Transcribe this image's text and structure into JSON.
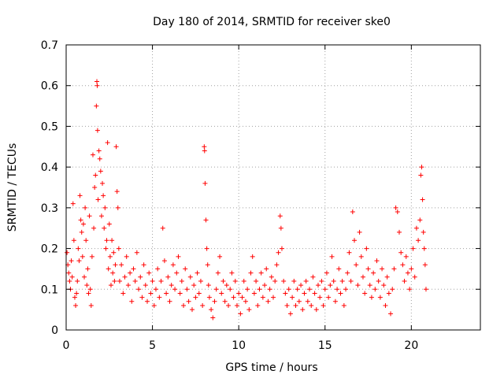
{
  "chart_data": {
    "type": "scatter",
    "title": "Day 180 of 2014, SRMTID for receiver ske0",
    "xlabel": "GPS time / hours",
    "ylabel": "SRMTID / TECUs",
    "xlim": [
      0,
      24
    ],
    "ylim": [
      0,
      0.7
    ],
    "xticks": [
      0,
      5,
      10,
      15,
      20
    ],
    "yticks": [
      0,
      0.1,
      0.2,
      0.3,
      0.4,
      0.5,
      0.6,
      0.7
    ],
    "xtick_labels": [
      "0",
      "5",
      "10",
      "15",
      "20"
    ],
    "ytick_labels": [
      "0",
      "0.1",
      "0.2",
      "0.3",
      "0.4",
      "0.5",
      "0.6",
      "0.7"
    ],
    "grid": true,
    "marker": "+",
    "color": "#ff0000",
    "series": [
      {
        "name": "ske0",
        "points": [
          [
            0.05,
            0.19
          ],
          [
            0.1,
            0.16
          ],
          [
            0.15,
            0.14
          ],
          [
            0.2,
            0.12
          ],
          [
            0.25,
            0.1
          ],
          [
            0.3,
            0.17
          ],
          [
            0.35,
            0.13
          ],
          [
            0.4,
            0.31
          ],
          [
            0.45,
            0.22
          ],
          [
            0.5,
            0.08
          ],
          [
            0.55,
            0.06
          ],
          [
            0.6,
            0.09
          ],
          [
            0.65,
            0.12
          ],
          [
            0.7,
            0.2
          ],
          [
            0.75,
            0.17
          ],
          [
            0.8,
            0.33
          ],
          [
            0.85,
            0.27
          ],
          [
            0.9,
            0.24
          ],
          [
            0.95,
            0.18
          ],
          [
            1.0,
            0.26
          ],
          [
            1.05,
            0.13
          ],
          [
            1.1,
            0.3
          ],
          [
            1.15,
            0.22
          ],
          [
            1.2,
            0.11
          ],
          [
            1.25,
            0.15
          ],
          [
            1.3,
            0.09
          ],
          [
            1.35,
            0.28
          ],
          [
            1.4,
            0.1
          ],
          [
            1.45,
            0.06
          ],
          [
            1.5,
            0.18
          ],
          [
            1.55,
            0.43
          ],
          [
            1.6,
            0.25
          ],
          [
            1.65,
            0.35
          ],
          [
            1.7,
            0.38
          ],
          [
            1.75,
            0.55
          ],
          [
            1.78,
            0.61
          ],
          [
            1.8,
            0.6
          ],
          [
            1.82,
            0.49
          ],
          [
            1.85,
            0.32
          ],
          [
            1.9,
            0.44
          ],
          [
            1.95,
            0.42
          ],
          [
            2.0,
            0.39
          ],
          [
            2.05,
            0.28
          ],
          [
            2.1,
            0.36
          ],
          [
            2.15,
            0.33
          ],
          [
            2.2,
            0.25
          ],
          [
            2.25,
            0.3
          ],
          [
            2.3,
            0.2
          ],
          [
            2.35,
            0.22
          ],
          [
            2.4,
            0.46
          ],
          [
            2.45,
            0.15
          ],
          [
            2.5,
            0.26
          ],
          [
            2.55,
            0.18
          ],
          [
            2.6,
            0.11
          ],
          [
            2.65,
            0.22
          ],
          [
            2.7,
            0.14
          ],
          [
            2.75,
            0.19
          ],
          [
            2.8,
            0.12
          ],
          [
            2.85,
            0.16
          ],
          [
            2.9,
            0.45
          ],
          [
            2.95,
            0.34
          ],
          [
            3.0,
            0.3
          ],
          [
            3.05,
            0.2
          ],
          [
            3.1,
            0.12
          ],
          [
            3.2,
            0.16
          ],
          [
            3.3,
            0.09
          ],
          [
            3.4,
            0.13
          ],
          [
            3.5,
            0.18
          ],
          [
            3.6,
            0.11
          ],
          [
            3.7,
            0.14
          ],
          [
            3.8,
            0.07
          ],
          [
            3.9,
            0.15
          ],
          [
            4.0,
            0.12
          ],
          [
            4.1,
            0.19
          ],
          [
            4.2,
            0.1
          ],
          [
            4.3,
            0.13
          ],
          [
            4.4,
            0.08
          ],
          [
            4.5,
            0.16
          ],
          [
            4.6,
            0.11
          ],
          [
            4.7,
            0.07
          ],
          [
            4.8,
            0.14
          ],
          [
            4.9,
            0.09
          ],
          [
            5.0,
            0.12
          ],
          [
            5.1,
            0.06
          ],
          [
            5.2,
            0.1
          ],
          [
            5.3,
            0.15
          ],
          [
            5.4,
            0.08
          ],
          [
            5.5,
            0.12
          ],
          [
            5.6,
            0.25
          ],
          [
            5.7,
            0.17
          ],
          [
            5.8,
            0.09
          ],
          [
            5.9,
            0.13
          ],
          [
            6.0,
            0.07
          ],
          [
            6.1,
            0.11
          ],
          [
            6.2,
            0.16
          ],
          [
            6.3,
            0.1
          ],
          [
            6.4,
            0.14
          ],
          [
            6.5,
            0.18
          ],
          [
            6.6,
            0.09
          ],
          [
            6.7,
            0.12
          ],
          [
            6.8,
            0.06
          ],
          [
            6.9,
            0.15
          ],
          [
            7.0,
            0.1
          ],
          [
            7.1,
            0.07
          ],
          [
            7.2,
            0.13
          ],
          [
            7.3,
            0.05
          ],
          [
            7.4,
            0.11
          ],
          [
            7.5,
            0.08
          ],
          [
            7.6,
            0.14
          ],
          [
            7.7,
            0.09
          ],
          [
            7.8,
            0.12
          ],
          [
            7.9,
            0.06
          ],
          [
            8.0,
            0.45
          ],
          [
            8.02,
            0.44
          ],
          [
            8.05,
            0.36
          ],
          [
            8.1,
            0.27
          ],
          [
            8.15,
            0.2
          ],
          [
            8.2,
            0.16
          ],
          [
            8.25,
            0.11
          ],
          [
            8.3,
            0.08
          ],
          [
            8.4,
            0.05
          ],
          [
            8.5,
            0.03
          ],
          [
            8.6,
            0.07
          ],
          [
            8.7,
            0.1
          ],
          [
            8.8,
            0.14
          ],
          [
            8.9,
            0.18
          ],
          [
            9.0,
            0.09
          ],
          [
            9.1,
            0.12
          ],
          [
            9.2,
            0.07
          ],
          [
            9.3,
            0.11
          ],
          [
            9.4,
            0.06
          ],
          [
            9.5,
            0.1
          ],
          [
            9.6,
            0.14
          ],
          [
            9.7,
            0.08
          ],
          [
            9.8,
            0.12
          ],
          [
            9.9,
            0.06
          ],
          [
            10.0,
            0.09
          ],
          [
            10.1,
            0.04
          ],
          [
            10.2,
            0.08
          ],
          [
            10.3,
            0.12
          ],
          [
            10.4,
            0.07
          ],
          [
            10.5,
            0.1
          ],
          [
            10.6,
            0.05
          ],
          [
            10.7,
            0.14
          ],
          [
            10.8,
            0.18
          ],
          [
            10.9,
            0.09
          ],
          [
            11.0,
            0.12
          ],
          [
            11.1,
            0.06
          ],
          [
            11.2,
            0.1
          ],
          [
            11.3,
            0.14
          ],
          [
            11.4,
            0.08
          ],
          [
            11.5,
            0.11
          ],
          [
            11.6,
            0.15
          ],
          [
            11.7,
            0.07
          ],
          [
            11.8,
            0.1
          ],
          [
            11.9,
            0.13
          ],
          [
            12.0,
            0.08
          ],
          [
            12.1,
            0.12
          ],
          [
            12.2,
            0.16
          ],
          [
            12.3,
            0.19
          ],
          [
            12.4,
            0.28
          ],
          [
            12.45,
            0.25
          ],
          [
            12.5,
            0.2
          ],
          [
            12.6,
            0.12
          ],
          [
            12.7,
            0.09
          ],
          [
            12.8,
            0.06
          ],
          [
            12.9,
            0.1
          ],
          [
            13.0,
            0.04
          ],
          [
            13.1,
            0.08
          ],
          [
            13.2,
            0.12
          ],
          [
            13.3,
            0.06
          ],
          [
            13.4,
            0.1
          ],
          [
            13.5,
            0.07
          ],
          [
            13.6,
            0.11
          ],
          [
            13.7,
            0.05
          ],
          [
            13.8,
            0.09
          ],
          [
            13.9,
            0.12
          ],
          [
            14.0,
            0.07
          ],
          [
            14.1,
            0.1
          ],
          [
            14.2,
            0.06
          ],
          [
            14.3,
            0.13
          ],
          [
            14.4,
            0.09
          ],
          [
            14.5,
            0.05
          ],
          [
            14.6,
            0.11
          ],
          [
            14.7,
            0.08
          ],
          [
            14.8,
            0.12
          ],
          [
            14.9,
            0.06
          ],
          [
            15.0,
            0.1
          ],
          [
            15.1,
            0.14
          ],
          [
            15.2,
            0.08
          ],
          [
            15.3,
            0.11
          ],
          [
            15.4,
            0.18
          ],
          [
            15.5,
            0.12
          ],
          [
            15.6,
            0.07
          ],
          [
            15.7,
            0.1
          ],
          [
            15.8,
            0.15
          ],
          [
            15.9,
            0.09
          ],
          [
            16.0,
            0.12
          ],
          [
            16.1,
            0.06
          ],
          [
            16.2,
            0.1
          ],
          [
            16.3,
            0.14
          ],
          [
            16.4,
            0.19
          ],
          [
            16.5,
            0.12
          ],
          [
            16.6,
            0.29
          ],
          [
            16.7,
            0.22
          ],
          [
            16.8,
            0.16
          ],
          [
            16.9,
            0.11
          ],
          [
            17.0,
            0.24
          ],
          [
            17.1,
            0.18
          ],
          [
            17.2,
            0.13
          ],
          [
            17.3,
            0.09
          ],
          [
            17.4,
            0.2
          ],
          [
            17.5,
            0.15
          ],
          [
            17.6,
            0.11
          ],
          [
            17.7,
            0.08
          ],
          [
            17.8,
            0.14
          ],
          [
            17.9,
            0.1
          ],
          [
            18.0,
            0.17
          ],
          [
            18.1,
            0.12
          ],
          [
            18.2,
            0.08
          ],
          [
            18.3,
            0.15
          ],
          [
            18.4,
            0.11
          ],
          [
            18.5,
            0.06
          ],
          [
            18.6,
            0.13
          ],
          [
            18.7,
            0.09
          ],
          [
            18.8,
            0.04
          ],
          [
            18.9,
            0.1
          ],
          [
            19.0,
            0.15
          ],
          [
            19.1,
            0.3
          ],
          [
            19.2,
            0.29
          ],
          [
            19.3,
            0.24
          ],
          [
            19.4,
            0.19
          ],
          [
            19.5,
            0.16
          ],
          [
            19.6,
            0.12
          ],
          [
            19.7,
            0.18
          ],
          [
            19.8,
            0.14
          ],
          [
            19.9,
            0.1
          ],
          [
            20.0,
            0.15
          ],
          [
            20.1,
            0.2
          ],
          [
            20.2,
            0.13
          ],
          [
            20.3,
            0.25
          ],
          [
            20.4,
            0.22
          ],
          [
            20.5,
            0.27
          ],
          [
            20.55,
            0.38
          ],
          [
            20.6,
            0.4
          ],
          [
            20.65,
            0.32
          ],
          [
            20.7,
            0.24
          ],
          [
            20.75,
            0.2
          ],
          [
            20.8,
            0.16
          ],
          [
            20.85,
            0.1
          ]
        ]
      }
    ]
  }
}
